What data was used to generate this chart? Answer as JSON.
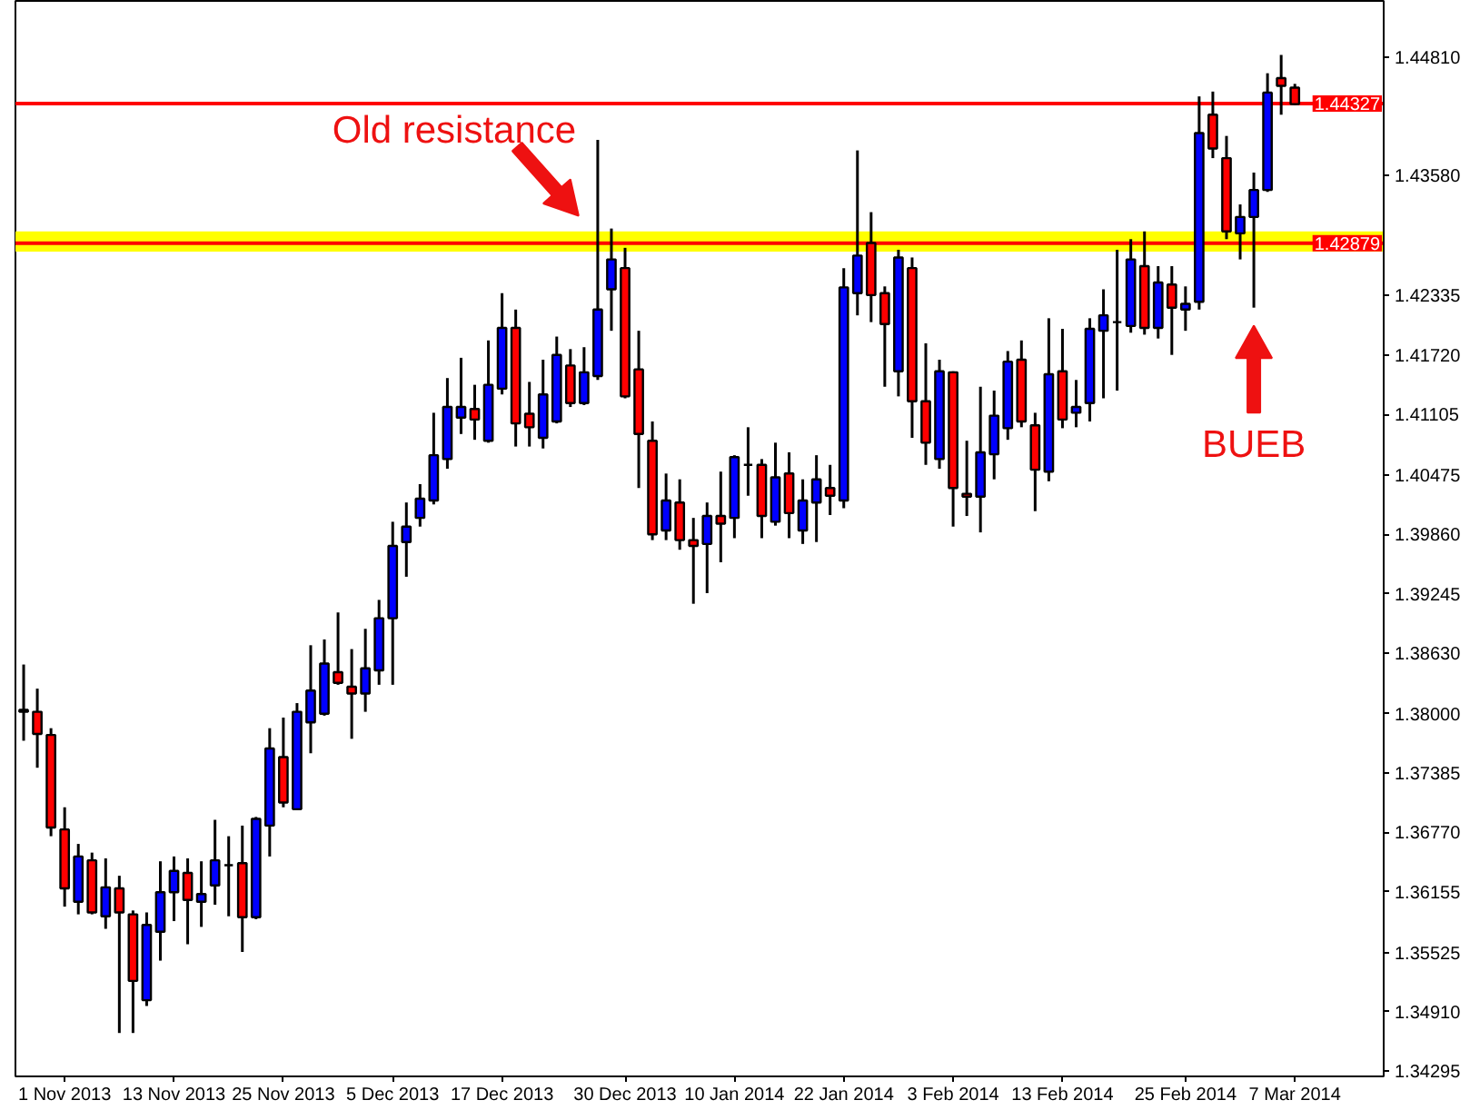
{
  "chart_data": {
    "type": "candlestick",
    "categories": [
      null,
      null,
      null,
      "1 Nov 2013",
      null,
      null,
      null,
      null,
      null,
      null,
      null,
      "13 Nov 2013",
      null,
      null,
      null,
      null,
      null,
      null,
      null,
      "25 Nov 2013",
      null,
      null,
      null,
      null,
      null,
      null,
      null,
      "5 Dec 2013",
      null,
      null,
      null,
      null,
      null,
      null,
      null,
      "17 Dec 2013",
      null,
      null,
      null,
      null,
      null,
      null,
      null,
      null,
      "30 Dec 2013",
      null,
      null,
      null,
      null,
      null,
      null,
      null,
      "10 Jan 2014",
      null,
      null,
      null,
      null,
      null,
      null,
      null,
      "22 Jan 2014",
      null,
      null,
      null,
      null,
      null,
      null,
      null,
      "3 Feb 2014",
      null,
      null,
      null,
      null,
      null,
      null,
      null,
      "13 Feb 2014",
      null,
      null,
      null,
      null,
      null,
      null,
      null,
      null,
      "25 Feb 2014",
      null,
      null,
      null,
      null,
      null,
      null,
      null,
      "7 Mar 2014"
    ],
    "ohlc": [
      [
        1.3804,
        1.3851,
        1.3772,
        1.3802
      ],
      [
        1.3802,
        1.3826,
        1.3744,
        1.3779
      ],
      [
        1.3778,
        1.3785,
        1.3673,
        1.3682
      ],
      [
        1.368,
        1.3703,
        1.36,
        1.3619
      ],
      [
        1.3605,
        1.3665,
        1.3592,
        1.3652
      ],
      [
        1.3648,
        1.3656,
        1.3592,
        1.3594
      ],
      [
        1.359,
        1.365,
        1.3577,
        1.362
      ],
      [
        1.3619,
        1.3632,
        1.3469,
        1.3594
      ],
      [
        1.3592,
        1.3596,
        1.3469,
        1.3523
      ],
      [
        1.3503,
        1.3594,
        1.3497,
        1.3581
      ],
      [
        1.3574,
        1.3647,
        1.3544,
        1.3615
      ],
      [
        1.3615,
        1.3652,
        1.3585,
        1.3637
      ],
      [
        1.3635,
        1.365,
        1.3561,
        1.3607
      ],
      [
        1.3605,
        1.3647,
        1.3579,
        1.3613
      ],
      [
        1.3622,
        1.369,
        1.3602,
        1.3648
      ],
      [
        1.3643,
        1.3673,
        1.359,
        1.3643
      ],
      [
        1.3645,
        1.3684,
        1.3553,
        1.3589
      ],
      [
        1.3589,
        1.3693,
        1.3587,
        1.3691
      ],
      [
        1.3684,
        1.3785,
        1.3652,
        1.3764
      ],
      [
        1.3755,
        1.3796,
        1.3703,
        1.3708
      ],
      [
        1.3701,
        1.3811,
        1.3701,
        1.3802
      ],
      [
        1.3791,
        1.3871,
        1.3759,
        1.3824
      ],
      [
        1.38,
        1.3877,
        1.3798,
        1.3852
      ],
      [
        1.3843,
        1.3905,
        1.383,
        1.3832
      ],
      [
        1.3828,
        1.3867,
        1.3774,
        1.3821
      ],
      [
        1.3821,
        1.3888,
        1.3802,
        1.3847
      ],
      [
        1.3845,
        1.3918,
        1.383,
        1.3899
      ],
      [
        1.3899,
        1.3999,
        1.383,
        1.3974
      ],
      [
        1.3978,
        1.4019,
        1.3942,
        1.3994
      ],
      [
        1.4003,
        1.4038,
        1.3994,
        1.4023
      ],
      [
        1.4021,
        1.4112,
        1.4017,
        1.4068
      ],
      [
        1.4064,
        1.4148,
        1.4054,
        1.4118
      ],
      [
        1.4107,
        1.4169,
        1.409,
        1.4118
      ],
      [
        1.4116,
        1.4141,
        1.4084,
        1.4105
      ],
      [
        1.4083,
        1.4187,
        1.4081,
        1.4141
      ],
      [
        1.4137,
        1.4236,
        1.4131,
        1.42
      ],
      [
        1.42,
        1.4219,
        1.4077,
        1.4101
      ],
      [
        1.4111,
        1.4144,
        1.4077,
        1.4097
      ],
      [
        1.4086,
        1.4167,
        1.4075,
        1.4131
      ],
      [
        1.4103,
        1.4191,
        1.4101,
        1.4172
      ],
      [
        1.4161,
        1.4178,
        1.4118,
        1.4122
      ],
      [
        1.4122,
        1.418,
        1.412,
        1.4154
      ],
      [
        1.415,
        1.4395,
        1.4146,
        1.4219
      ],
      [
        1.424,
        1.4303,
        1.4197,
        1.4271
      ],
      [
        1.4262,
        1.4283,
        1.4127,
        1.4129
      ],
      [
        1.4157,
        1.4197,
        1.4034,
        1.409
      ],
      [
        1.4083,
        1.4103,
        1.398,
        1.3986
      ],
      [
        1.399,
        1.4049,
        1.398,
        1.4021
      ],
      [
        1.4019,
        1.4043,
        1.397,
        1.398
      ],
      [
        1.398,
        1.4003,
        1.3914,
        1.3974
      ],
      [
        1.3976,
        1.4019,
        1.3925,
        1.4005
      ],
      [
        1.4005,
        1.4051,
        1.3957,
        1.3997
      ],
      [
        1.4003,
        1.4068,
        1.3982,
        1.4066
      ],
      [
        1.4058,
        1.4097,
        1.4026,
        1.4058
      ],
      [
        1.4058,
        1.4064,
        1.3982,
        1.4005
      ],
      [
        1.3999,
        1.4081,
        1.3995,
        1.4045
      ],
      [
        1.4049,
        1.4071,
        1.3982,
        1.4008
      ],
      [
        1.399,
        1.4043,
        1.3976,
        1.4021
      ],
      [
        1.4019,
        1.4068,
        1.3978,
        1.4043
      ],
      [
        1.4034,
        1.4058,
        1.4006,
        1.4026
      ],
      [
        1.4021,
        1.4262,
        1.4013,
        1.4242
      ],
      [
        1.4236,
        1.4384,
        1.4213,
        1.4275
      ],
      [
        1.4288,
        1.432,
        1.4206,
        1.4234
      ],
      [
        1.4236,
        1.4243,
        1.4139,
        1.4204
      ],
      [
        1.4155,
        1.4281,
        1.4129,
        1.4273
      ],
      [
        1.4262,
        1.4273,
        1.4086,
        1.4124
      ],
      [
        1.4124,
        1.4184,
        1.4058,
        1.4081
      ],
      [
        1.4064,
        1.4167,
        1.4054,
        1.4155
      ],
      [
        1.4154,
        1.4155,
        1.3994,
        1.4034
      ],
      [
        1.4028,
        1.4083,
        1.4005,
        1.4025
      ],
      [
        1.4025,
        1.4139,
        1.3988,
        1.4071
      ],
      [
        1.4069,
        1.4135,
        1.4043,
        1.4109
      ],
      [
        1.4096,
        1.4176,
        1.4084,
        1.4165
      ],
      [
        1.4167,
        1.4187,
        1.4097,
        1.4103
      ],
      [
        1.4099,
        1.4112,
        1.401,
        1.4053
      ],
      [
        1.4051,
        1.421,
        1.4041,
        1.4152
      ],
      [
        1.4155,
        1.4199,
        1.4096,
        1.4105
      ],
      [
        1.4112,
        1.4146,
        1.4097,
        1.4118
      ],
      [
        1.4122,
        1.421,
        1.4103,
        1.4199
      ],
      [
        1.4197,
        1.424,
        1.4127,
        1.4213
      ],
      [
        1.4206,
        1.4281,
        1.4135,
        1.4206
      ],
      [
        1.4202,
        1.4292,
        1.4195,
        1.4271
      ],
      [
        1.4264,
        1.43,
        1.4193,
        1.42
      ],
      [
        1.42,
        1.4264,
        1.4189,
        1.4247
      ],
      [
        1.4245,
        1.4264,
        1.4172,
        1.4221
      ],
      [
        1.4219,
        1.4243,
        1.4197,
        1.4225
      ],
      [
        1.4227,
        1.444,
        1.4219,
        1.4402
      ],
      [
        1.4421,
        1.4445,
        1.4376,
        1.4386
      ],
      [
        1.4376,
        1.4399,
        1.4292,
        1.43
      ],
      [
        1.4298,
        1.4328,
        1.4271,
        1.4315
      ],
      [
        1.4315,
        1.4361,
        1.4221,
        1.4343
      ],
      [
        1.4343,
        1.4464,
        1.4341,
        1.4444
      ],
      [
        1.4459,
        1.4483,
        1.4421,
        1.4451
      ],
      [
        1.4449,
        1.4453,
        1.4431,
        1.4432
      ]
    ],
    "colors": [
      "#ff0000",
      "#ff0000",
      "#ff0000",
      "#ff0000",
      "#0000ff",
      "#ff0000",
      "#0000ff",
      "#ff0000",
      "#ff0000",
      "#0000ff",
      "#0000ff",
      "#0000ff",
      "#ff0000",
      "#0000ff",
      "#0000ff",
      "#000000",
      "#ff0000",
      "#0000ff",
      "#0000ff",
      "#ff0000",
      "#0000ff",
      "#0000ff",
      "#0000ff",
      "#ff0000",
      "#ff0000",
      "#0000ff",
      "#0000ff",
      "#0000ff",
      "#0000ff",
      "#0000ff",
      "#0000ff",
      "#0000ff",
      "#0000ff",
      "#ff0000",
      "#0000ff",
      "#0000ff",
      "#ff0000",
      "#ff0000",
      "#0000ff",
      "#0000ff",
      "#ff0000",
      "#0000ff",
      "#0000ff",
      "#0000ff",
      "#ff0000",
      "#ff0000",
      "#ff0000",
      "#0000ff",
      "#ff0000",
      "#ff0000",
      "#0000ff",
      "#ff0000",
      "#0000ff",
      "#000000",
      "#ff0000",
      "#0000ff",
      "#ff0000",
      "#0000ff",
      "#0000ff",
      "#ff0000",
      "#0000ff",
      "#0000ff",
      "#ff0000",
      "#ff0000",
      "#0000ff",
      "#ff0000",
      "#ff0000",
      "#0000ff",
      "#ff0000",
      "#ff0000",
      "#0000ff",
      "#0000ff",
      "#0000ff",
      "#ff0000",
      "#ff0000",
      "#0000ff",
      "#ff0000",
      "#0000ff",
      "#0000ff",
      "#0000ff",
      "#000000",
      "#0000ff",
      "#ff0000",
      "#0000ff",
      "#ff0000",
      "#0000ff",
      "#0000ff",
      "#ff0000",
      "#ff0000",
      "#0000ff",
      "#0000ff",
      "#0000ff",
      "#ff0000",
      "#ff0000"
    ],
    "ylim": [
      1.3424,
      1.4539
    ],
    "yticks": [
      {
        "value": 1.4481,
        "label": "1.44810"
      },
      {
        "value": 1.4358,
        "label": "1.43580"
      },
      1.42335,
      {
        "value": 1.4172,
        "label": "1.41720"
      },
      1.41105,
      1.40475,
      {
        "value": 1.3986,
        "label": "1.39860"
      },
      1.39245,
      {
        "value": 1.3863,
        "label": "1.38630"
      },
      {
        "value": 1.38,
        "label": "1.38000"
      },
      1.37385,
      {
        "value": 1.3677,
        "label": "1.36770"
      },
      1.36155,
      1.35525,
      {
        "value": 1.3491,
        "label": "1.34910"
      },
      1.34295
    ],
    "ref_lines": [
      {
        "axis": "y",
        "value": 1.44327,
        "label": "1.44327",
        "color": "#ff0000"
      },
      {
        "axis": "y",
        "value": 1.42879,
        "label": "1.42879",
        "color": "#ff0000"
      }
    ],
    "bands": [
      {
        "axis": "y",
        "from": 1.4279,
        "to": 1.43,
        "color": "#ffff00"
      }
    ],
    "annotations": [
      {
        "text": "Old resistance",
        "y": 1.42879
      },
      "BUEB"
    ]
  }
}
